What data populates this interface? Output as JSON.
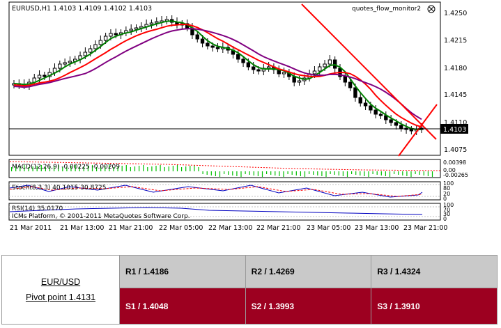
{
  "chart": {
    "main_header": "EURUSD,H1  1.4103 1.4109 1.4102 1.4103",
    "indicator_name": "quotes_flow_monitor2",
    "price_ticks": [
      "1.4250",
      "1.4215",
      "1.4180",
      "1.4145",
      "1.4110",
      "1.4075"
    ],
    "current_price": "1.4103",
    "macd_label": "MACD(12,26,9) -0.00225 -0.00209",
    "macd_ticks": [
      "0.00398",
      "0.00",
      "-0.00265"
    ],
    "stoch_label": "Stoch(8,3,3) 40.1015 30.8725",
    "stoch_ticks": [
      "100",
      "80",
      "20",
      "0"
    ],
    "rsi_label": "RSI(14) 35.0170",
    "rsi_ticks": [
      "100",
      "70",
      "30",
      "0"
    ],
    "watermark": "ICMs Platform, © 2001-2011 MetaQuotes Software Corp.",
    "time_labels": [
      "21 Mar 2011",
      "21 Mar 13:00",
      "21 Mar 21:00",
      "22 Mar 05:00",
      "22 Mar 13:00",
      "22 Mar 21:00",
      "23 Mar 05:00",
      "23 Mar 13:00",
      "23 Mar 21:00"
    ],
    "colors": {
      "bull": "#ffffff",
      "bear": "#000000",
      "ma_fast": "#008000",
      "ma_mid": "#ff0000",
      "ma_slow": "#800080",
      "trend": "#ff0000",
      "macd": "#00c000"
    }
  },
  "pivot": {
    "pair": "EUR/USD",
    "pivot_label": "Pivot point 1.4131",
    "r1": "R1 / 1.4186",
    "r2": "R2 / 1.4269",
    "r3": "R3 / 1.4324",
    "s1": "S1 / 1.4048",
    "s2": "S2 / 1.3993",
    "s3": "S3 / 1.3910",
    "colors": {
      "resistance_bg": "#c9c9c9",
      "support_bg": "#9d0020"
    }
  }
}
